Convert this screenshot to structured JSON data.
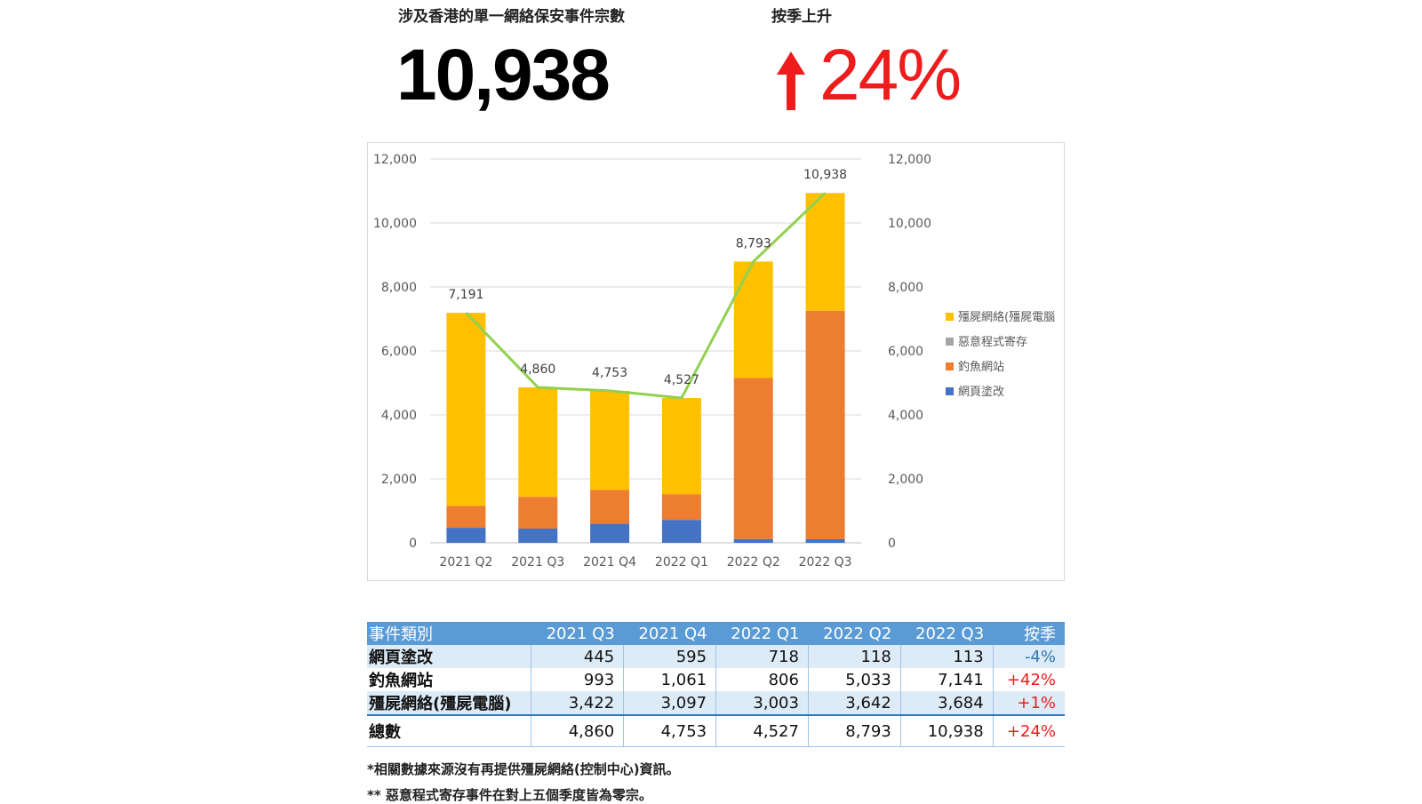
{
  "header": {
    "total_label": "涉及香港的單一網絡保安事件宗數",
    "total_value": "10,938",
    "change_label": "按季上升",
    "change_value": "24%"
  },
  "colors": {
    "botnet": "#ffc000",
    "malware": "#a5a5a5",
    "phishing": "#ed7d31",
    "defacement": "#4472c4",
    "total_line": "#92d050",
    "up_arrow": "#ee1c1c",
    "table_header": "#5b9bd5"
  },
  "chart_data": {
    "type": "bar",
    "stacked": true,
    "categories": [
      "2021 Q2",
      "2021 Q3",
      "2021 Q4",
      "2022 Q1",
      "2022 Q2",
      "2022 Q3"
    ],
    "series": [
      {
        "name": "網頁塗改",
        "values": [
          470,
          445,
          595,
          718,
          118,
          113
        ],
        "color": "#4472c4"
      },
      {
        "name": "釣魚網站",
        "values": [
          690,
          993,
          1061,
          806,
          5033,
          7141
        ],
        "color": "#ed7d31"
      },
      {
        "name": "惡意程式寄存",
        "values": [
          0,
          0,
          0,
          0,
          0,
          0
        ],
        "color": "#a5a5a5"
      },
      {
        "name": "殭屍網絡(殭屍電腦",
        "values": [
          6031,
          3422,
          3097,
          3003,
          3642,
          3684
        ],
        "color": "#ffc000"
      }
    ],
    "line": {
      "values": [
        7191,
        4860,
        4753,
        4527,
        8793,
        10938
      ],
      "color": "#92d050"
    },
    "data_labels": [
      "7,191",
      "4,860",
      "4,753",
      "4,527",
      "8,793",
      "10,938"
    ],
    "y_ticks": [
      "0",
      "2,000",
      "4,000",
      "6,000",
      "8,000",
      "10,000",
      "12,000"
    ],
    "ylim": [
      0,
      12000
    ],
    "secondary_axis": true,
    "legend": [
      "殭屍網絡(殭屍電腦",
      "惡意程式寄存",
      "釣魚網站",
      "網頁塗改"
    ],
    "legend_position": "right",
    "grid": true
  },
  "table": {
    "headers": [
      "事件類別",
      "2021 Q3",
      "2021 Q4",
      "2022 Q1",
      "2022 Q2",
      "2022 Q3",
      "按季"
    ],
    "rows": [
      {
        "label": "網頁塗改",
        "values": [
          "445",
          "595",
          "718",
          "118",
          "113"
        ],
        "change": "-4%"
      },
      {
        "label": "釣魚網站",
        "values": [
          "993",
          "1,061",
          "806",
          "5,033",
          "7,141"
        ],
        "change": "+42%"
      },
      {
        "label": "殭屍網絡(殭屍電腦)",
        "values": [
          "3,422",
          "3,097",
          "3,003",
          "3,642",
          "3,684"
        ],
        "change": "+1%"
      }
    ],
    "total": {
      "label": "總數",
      "values": [
        "4,860",
        "4,753",
        "4,527",
        "8,793",
        "10,938"
      ],
      "change": "+24%"
    }
  },
  "footnotes": [
    "*相關數據來源沒有再提供殭屍網絡(控制中心)資訊。",
    "** 惡意程式寄存事件在對上五個季度皆為零宗。"
  ]
}
